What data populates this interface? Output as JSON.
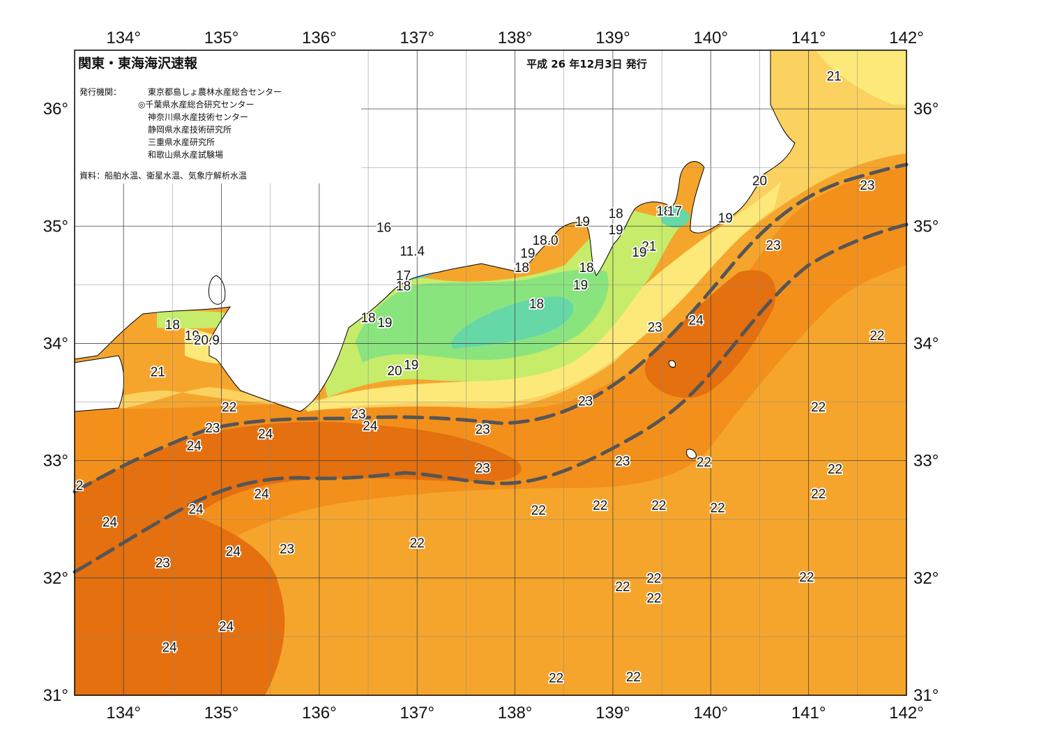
{
  "title": "関東・東海海沢速報",
  "issue_date": "平成 26 年12月3日 発行",
  "issuers_label": "発行機関：",
  "issuers": [
    "東京都島しょ農林水産総合センター",
    "◎千葉県水産総合研究センター",
    "神奈川県水産技術センター",
    "静岡県水産技術研究所",
    "三重県水産研究所",
    "和歌山県水産試験場"
  ],
  "sources": "資料：船舶水温、衛星水温、気象庁解析水温",
  "longitudes": [
    "134°",
    "135°",
    "136°",
    "137°",
    "138°",
    "139°",
    "140°",
    "141°",
    "142°"
  ],
  "latitudes": [
    "36°",
    "35°",
    "34°",
    "33°",
    "32°",
    "31°"
  ],
  "colors": {
    "t_24": "#e4700f",
    "t_23": "#f3901c",
    "t_22": "#f6a52c",
    "t_21": "#fbd160",
    "t_20": "#fce97a",
    "t_19": "#c6ec6a",
    "t_18": "#8ae47e",
    "t_17": "#66d8a8",
    "t_16": "#54c6e6",
    "t_14": "#2f7ce6",
    "land": "#ffffff",
    "current_axis": "#555555"
  },
  "isotherm_labels": [
    {
      "text": "21",
      "lon": 141.26,
      "lat": 36.27
    },
    {
      "text": "20",
      "lon": 140.5,
      "lat": 35.38
    },
    {
      "text": "23",
      "lon": 141.6,
      "lat": 35.34
    },
    {
      "text": "19",
      "lon": 140.15,
      "lat": 35.06
    },
    {
      "text": "23",
      "lon": 140.64,
      "lat": 34.83
    },
    {
      "text": "18",
      "lon": 139.03,
      "lat": 35.1
    },
    {
      "text": "18",
      "lon": 139.52,
      "lat": 35.12
    },
    {
      "text": "17",
      "lon": 139.63,
      "lat": 35.12
    },
    {
      "text": "19",
      "lon": 138.69,
      "lat": 35.03
    },
    {
      "text": "19",
      "lon": 139.03,
      "lat": 34.96
    },
    {
      "text": "18.0",
      "lon": 138.31,
      "lat": 34.87
    },
    {
      "text": "21",
      "lon": 139.37,
      "lat": 34.82
    },
    {
      "text": "19",
      "lon": 139.27,
      "lat": 34.77
    },
    {
      "text": "19",
      "lon": 138.13,
      "lat": 34.76
    },
    {
      "text": "18",
      "lon": 138.07,
      "lat": 34.64
    },
    {
      "text": "18",
      "lon": 138.73,
      "lat": 34.64
    },
    {
      "text": "19",
      "lon": 138.67,
      "lat": 34.49
    },
    {
      "text": "16",
      "lon": 136.66,
      "lat": 34.98
    },
    {
      "text": "11.4",
      "lon": 136.95,
      "lat": 34.78
    },
    {
      "text": "17",
      "lon": 136.86,
      "lat": 34.57
    },
    {
      "text": "18",
      "lon": 136.86,
      "lat": 34.48
    },
    {
      "text": "18",
      "lon": 138.22,
      "lat": 34.33
    },
    {
      "text": "23",
      "lon": 139.43,
      "lat": 34.13
    },
    {
      "text": "24",
      "lon": 139.85,
      "lat": 34.19
    },
    {
      "text": "18",
      "lon": 134.5,
      "lat": 34.15
    },
    {
      "text": "19",
      "lon": 134.7,
      "lat": 34.06
    },
    {
      "text": "20.9",
      "lon": 134.85,
      "lat": 34.02
    },
    {
      "text": "18",
      "lon": 136.5,
      "lat": 34.21
    },
    {
      "text": "19",
      "lon": 136.67,
      "lat": 34.17
    },
    {
      "text": "22",
      "lon": 141.7,
      "lat": 34.06
    },
    {
      "text": "21",
      "lon": 134.35,
      "lat": 33.75
    },
    {
      "text": "20",
      "lon": 136.77,
      "lat": 33.76
    },
    {
      "text": "19",
      "lon": 136.94,
      "lat": 33.81
    },
    {
      "text": "23",
      "lon": 138.72,
      "lat": 33.5
    },
    {
      "text": "22",
      "lon": 135.08,
      "lat": 33.45
    },
    {
      "text": "23",
      "lon": 136.4,
      "lat": 33.39
    },
    {
      "text": "24",
      "lon": 136.52,
      "lat": 33.29
    },
    {
      "text": "23",
      "lon": 134.91,
      "lat": 33.27
    },
    {
      "text": "24",
      "lon": 135.45,
      "lat": 33.22
    },
    {
      "text": "23",
      "lon": 137.67,
      "lat": 33.26
    },
    {
      "text": "22",
      "lon": 141.1,
      "lat": 33.45
    },
    {
      "text": "24",
      "lon": 134.72,
      "lat": 33.12
    },
    {
      "text": "23",
      "lon": 139.1,
      "lat": 32.99
    },
    {
      "text": "22",
      "lon": 139.93,
      "lat": 32.98
    },
    {
      "text": "22",
      "lon": 141.27,
      "lat": 32.92
    },
    {
      "text": "23",
      "lon": 137.67,
      "lat": 32.93
    },
    {
      "text": "22",
      "lon": 141.1,
      "lat": 32.71
    },
    {
      "text": "24",
      "lon": 135.41,
      "lat": 32.71
    },
    {
      "text": "22",
      "lon": 138.24,
      "lat": 32.57
    },
    {
      "text": "22",
      "lon": 138.87,
      "lat": 32.61
    },
    {
      "text": "22",
      "lon": 139.47,
      "lat": 32.61
    },
    {
      "text": "22",
      "lon": 140.07,
      "lat": 32.59
    },
    {
      "text": "24",
      "lon": 134.74,
      "lat": 32.58
    },
    {
      "text": "24",
      "lon": 133.86,
      "lat": 32.47
    },
    {
      "text": "22",
      "lon": 137.0,
      "lat": 32.29
    },
    {
      "text": "23",
      "lon": 135.67,
      "lat": 32.24
    },
    {
      "text": "24",
      "lon": 135.12,
      "lat": 32.22
    },
    {
      "text": "23",
      "lon": 134.4,
      "lat": 32.12
    },
    {
      "text": "22",
      "lon": 139.42,
      "lat": 31.99
    },
    {
      "text": "22",
      "lon": 140.98,
      "lat": 32.0
    },
    {
      "text": "22",
      "lon": 139.1,
      "lat": 31.92
    },
    {
      "text": "22",
      "lon": 139.42,
      "lat": 31.82
    },
    {
      "text": "24",
      "lon": 135.05,
      "lat": 31.58
    },
    {
      "text": "24",
      "lon": 134.47,
      "lat": 31.4
    },
    {
      "text": "22",
      "lon": 138.42,
      "lat": 31.14
    },
    {
      "text": "22",
      "lon": 139.21,
      "lat": 31.15
    },
    {
      "text": "2",
      "lon": 133.55,
      "lat": 32.78
    }
  ]
}
